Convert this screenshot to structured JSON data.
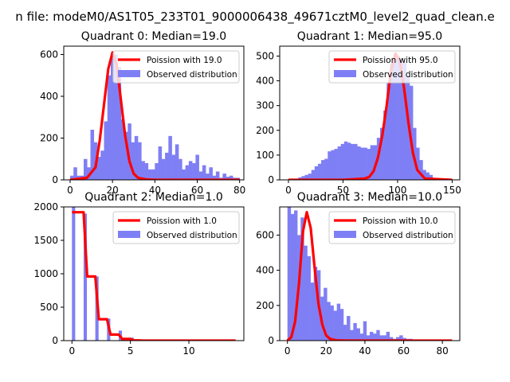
{
  "suptitle": "n file: modeM0/AS1T05_233T01_9000006438_49671cztM0_level2_quad_clean.e",
  "colors": {
    "bars": "#7f7ff5",
    "line": "#ff0000"
  },
  "chart_data": [
    {
      "type": "bar",
      "title": "Quadrant 0: Median=19.0",
      "xlim": [
        -3,
        82
      ],
      "ylim": [
        0,
        640
      ],
      "xticks": [
        0,
        20,
        40,
        60,
        80
      ],
      "yticks": [
        0,
        200,
        400,
        600
      ],
      "xlabel": "",
      "ylabel": "",
      "legend": {
        "placement": "top-right",
        "line_label": "Poission with 19.0",
        "bars_label": "Observed distribution"
      },
      "hist": {
        "start": 0,
        "width": 1.6,
        "values": [
          20,
          60,
          20,
          20,
          100,
          60,
          240,
          180,
          110,
          140,
          280,
          500,
          600,
          600,
          540,
          290,
          230,
          270,
          180,
          210,
          180,
          90,
          80,
          50,
          50,
          80,
          160,
          100,
          130,
          210,
          120,
          170,
          100,
          50,
          70,
          90,
          80,
          120,
          40,
          70,
          30,
          60,
          20,
          40,
          10,
          30,
          15,
          20,
          10,
          10
        ]
      },
      "curve": {
        "x": [
          0,
          8,
          12,
          14,
          16,
          18,
          20,
          22,
          24,
          26,
          28,
          30,
          32,
          36,
          40,
          50,
          60,
          70,
          80
        ],
        "y": [
          0,
          10,
          60,
          190,
          360,
          530,
          610,
          550,
          380,
          210,
          90,
          30,
          10,
          2,
          0,
          0,
          0,
          0,
          0
        ]
      }
    },
    {
      "type": "bar",
      "title": "Quadrant 1: Median=95.0",
      "xlim": [
        -8,
        157
      ],
      "ylim": [
        0,
        540
      ],
      "xticks": [
        0,
        50,
        100,
        150
      ],
      "yticks": [
        0,
        100,
        200,
        300,
        400,
        500
      ],
      "xlabel": "",
      "ylabel": "",
      "legend": {
        "placement": "top-right",
        "line_label": "Poission with 95.0",
        "bars_label": "Observed distribution"
      },
      "hist": {
        "start": 0,
        "width": 3.0,
        "values": [
          0,
          3,
          5,
          10,
          15,
          20,
          25,
          40,
          55,
          65,
          80,
          85,
          115,
          120,
          125,
          135,
          145,
          155,
          150,
          145,
          145,
          135,
          130,
          130,
          125,
          140,
          140,
          170,
          210,
          280,
          390,
          470,
          500,
          500,
          490,
          480,
          420,
          380,
          210,
          130,
          80,
          40,
          30,
          20,
          5,
          2,
          1,
          0,
          0,
          0
        ]
      },
      "curve": {
        "x": [
          0,
          20,
          50,
          70,
          74,
          78,
          82,
          86,
          90,
          94,
          98,
          102,
          106,
          110,
          114,
          118,
          125,
          150
        ],
        "y": [
          0,
          0,
          0,
          5,
          12,
          35,
          90,
          180,
          300,
          440,
          510,
          480,
          370,
          230,
          110,
          40,
          5,
          0
        ]
      }
    },
    {
      "type": "bar",
      "title": "Quadrant 2: Median=1.0",
      "xlim": [
        -0.7,
        14.7
      ],
      "ylim": [
        0,
        2000
      ],
      "xticks": [
        0,
        5,
        10
      ],
      "yticks": [
        0,
        500,
        1000,
        1500,
        2000
      ],
      "xlabel": "",
      "ylabel": "",
      "legend": {
        "placement": "top-right",
        "line_label": "Poission with 1.0",
        "bars_label": "Observed distribution"
      },
      "hist": {
        "start": 0,
        "width": 0.28,
        "gap": 0.25,
        "bins": [
          {
            "x": 0.0,
            "v": 2000
          },
          {
            "x": 1.0,
            "v": 1900
          },
          {
            "x": 2.0,
            "v": 960
          },
          {
            "x": 3.0,
            "v": 330
          },
          {
            "x": 4.0,
            "v": 150
          },
          {
            "x": 5.0,
            "v": 45
          },
          {
            "x": 6.0,
            "v": 10
          },
          {
            "x": 7.0,
            "v": 3
          }
        ]
      },
      "curve": {
        "x": [
          0,
          1,
          1.3,
          2,
          2.3,
          3,
          3.3,
          4,
          4.3,
          5,
          5.3,
          6,
          7,
          8,
          9,
          10,
          11,
          12,
          13,
          14
        ],
        "y": [
          1920,
          1920,
          960,
          960,
          320,
          320,
          90,
          90,
          25,
          25,
          5,
          1,
          0,
          0,
          0,
          0,
          0,
          0,
          0,
          0
        ]
      }
    },
    {
      "type": "bar",
      "title": "Quadrant 3: Median=10.0",
      "xlim": [
        -4,
        89
      ],
      "ylim": [
        0,
        760
      ],
      "xticks": [
        0,
        20,
        40,
        60,
        80
      ],
      "yticks": [
        0,
        200,
        400,
        600
      ],
      "xlabel": "",
      "ylabel": "",
      "legend": {
        "placement": "top-right",
        "line_label": "Poission with 10.0",
        "bars_label": "Observed distribution"
      },
      "hist": {
        "start": 0,
        "width": 1.7,
        "values": [
          760,
          720,
          740,
          600,
          700,
          540,
          480,
          330,
          420,
          400,
          250,
          300,
          220,
          200,
          170,
          210,
          180,
          90,
          140,
          60,
          100,
          70,
          40,
          110,
          30,
          50,
          40,
          60,
          30,
          30,
          50,
          20,
          10,
          20,
          30,
          15,
          10,
          10,
          5,
          5
        ]
      },
      "curve": {
        "x": [
          0,
          2,
          4,
          6,
          8,
          10,
          12,
          14,
          16,
          18,
          20,
          22,
          25,
          30,
          40,
          50,
          60,
          70,
          85
        ],
        "y": [
          0,
          20,
          110,
          330,
          620,
          730,
          640,
          420,
          210,
          90,
          30,
          10,
          2,
          0,
          0,
          0,
          0,
          0,
          0
        ]
      }
    }
  ]
}
